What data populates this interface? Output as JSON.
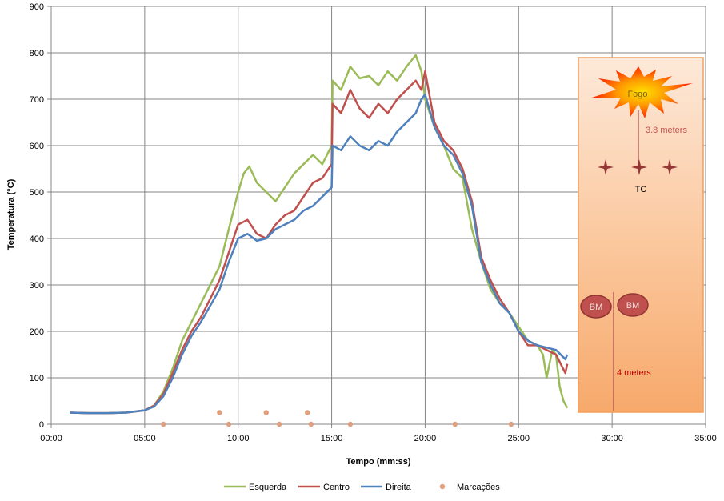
{
  "chart_data": {
    "type": "line",
    "title": "",
    "xlabel": "Tempo (mm:ss)",
    "ylabel": "Temperatura  (°C)",
    "xlim": [
      0,
      35
    ],
    "ylim": [
      0,
      900
    ],
    "x_ticks": [
      "00:00",
      "05:00",
      "10:00",
      "15:00",
      "20:00",
      "25:00",
      "30:00",
      "35:00"
    ],
    "y_ticks": [
      "0",
      "100",
      "200",
      "300",
      "400",
      "500",
      "600",
      "700",
      "800",
      "900"
    ],
    "grid": true,
    "legend_position": "bottom",
    "x_unit": "minutes",
    "series": [
      {
        "name": "Esquerda",
        "color": "#9BBB59",
        "points": [
          [
            1,
            25
          ],
          [
            2,
            24
          ],
          [
            3,
            24
          ],
          [
            4,
            25
          ],
          [
            5,
            30
          ],
          [
            5.5,
            40
          ],
          [
            6,
            70
          ],
          [
            6.5,
            120
          ],
          [
            7,
            180
          ],
          [
            7.5,
            220
          ],
          [
            8,
            260
          ],
          [
            8.5,
            300
          ],
          [
            9,
            340
          ],
          [
            9.5,
            420
          ],
          [
            10,
            500
          ],
          [
            10.3,
            540
          ],
          [
            10.6,
            555
          ],
          [
            11,
            520
          ],
          [
            11.5,
            500
          ],
          [
            12,
            480
          ],
          [
            12.5,
            510
          ],
          [
            13,
            540
          ],
          [
            13.5,
            560
          ],
          [
            14,
            580
          ],
          [
            14.5,
            560
          ],
          [
            15,
            600
          ],
          [
            15.05,
            740
          ],
          [
            15.5,
            720
          ],
          [
            16,
            770
          ],
          [
            16.5,
            745
          ],
          [
            17,
            750
          ],
          [
            17.5,
            730
          ],
          [
            18,
            760
          ],
          [
            18.5,
            740
          ],
          [
            19,
            770
          ],
          [
            19.5,
            795
          ],
          [
            19.8,
            760
          ],
          [
            20,
            700
          ],
          [
            20.5,
            640
          ],
          [
            21,
            600
          ],
          [
            21.5,
            550
          ],
          [
            22,
            530
          ],
          [
            22.5,
            420
          ],
          [
            23,
            350
          ],
          [
            23.5,
            290
          ],
          [
            24,
            260
          ],
          [
            24.5,
            240
          ],
          [
            25,
            210
          ],
          [
            25.5,
            180
          ],
          [
            26,
            170
          ],
          [
            26.3,
            150
          ],
          [
            26.5,
            100
          ],
          [
            26.8,
            160
          ],
          [
            27,
            150
          ],
          [
            27.2,
            80
          ],
          [
            27.4,
            50
          ],
          [
            27.6,
            35
          ]
        ]
      },
      {
        "name": "Centro",
        "color": "#C0504D",
        "points": [
          [
            1,
            25
          ],
          [
            2,
            24
          ],
          [
            3,
            24
          ],
          [
            4,
            25
          ],
          [
            5,
            30
          ],
          [
            5.5,
            40
          ],
          [
            6,
            65
          ],
          [
            6.5,
            110
          ],
          [
            7,
            160
          ],
          [
            7.5,
            200
          ],
          [
            8,
            230
          ],
          [
            8.5,
            270
          ],
          [
            9,
            310
          ],
          [
            9.5,
            370
          ],
          [
            10,
            430
          ],
          [
            10.5,
            440
          ],
          [
            11,
            410
          ],
          [
            11.5,
            400
          ],
          [
            12,
            430
          ],
          [
            12.5,
            450
          ],
          [
            13,
            460
          ],
          [
            13.5,
            490
          ],
          [
            14,
            520
          ],
          [
            14.5,
            530
          ],
          [
            15,
            560
          ],
          [
            15.05,
            690
          ],
          [
            15.5,
            670
          ],
          [
            16,
            720
          ],
          [
            16.5,
            680
          ],
          [
            17,
            660
          ],
          [
            17.5,
            690
          ],
          [
            18,
            670
          ],
          [
            18.5,
            700
          ],
          [
            19,
            720
          ],
          [
            19.5,
            740
          ],
          [
            19.8,
            720
          ],
          [
            20,
            760
          ],
          [
            20.5,
            650
          ],
          [
            21,
            610
          ],
          [
            21.5,
            590
          ],
          [
            22,
            550
          ],
          [
            22.5,
            480
          ],
          [
            23,
            360
          ],
          [
            23.5,
            310
          ],
          [
            24,
            270
          ],
          [
            24.5,
            240
          ],
          [
            25,
            200
          ],
          [
            25.5,
            170
          ],
          [
            26,
            170
          ],
          [
            26.5,
            160
          ],
          [
            27,
            150
          ],
          [
            27.5,
            110
          ],
          [
            27.6,
            130
          ]
        ]
      },
      {
        "name": "Direita",
        "color": "#4F81BD",
        "points": [
          [
            1,
            25
          ],
          [
            2,
            24
          ],
          [
            3,
            24
          ],
          [
            4,
            25
          ],
          [
            5,
            30
          ],
          [
            5.5,
            38
          ],
          [
            6,
            60
          ],
          [
            6.5,
            100
          ],
          [
            7,
            150
          ],
          [
            7.5,
            190
          ],
          [
            8,
            220
          ],
          [
            8.5,
            255
          ],
          [
            9,
            290
          ],
          [
            9.5,
            350
          ],
          [
            10,
            400
          ],
          [
            10.5,
            410
          ],
          [
            11,
            395
          ],
          [
            11.5,
            400
          ],
          [
            12,
            420
          ],
          [
            12.5,
            430
          ],
          [
            13,
            440
          ],
          [
            13.5,
            460
          ],
          [
            14,
            470
          ],
          [
            14.5,
            490
          ],
          [
            15,
            510
          ],
          [
            15.05,
            600
          ],
          [
            15.5,
            590
          ],
          [
            16,
            620
          ],
          [
            16.5,
            600
          ],
          [
            17,
            590
          ],
          [
            17.5,
            610
          ],
          [
            18,
            600
          ],
          [
            18.5,
            630
          ],
          [
            19,
            650
          ],
          [
            19.5,
            670
          ],
          [
            19.8,
            700
          ],
          [
            20,
            710
          ],
          [
            20.5,
            640
          ],
          [
            21,
            600
          ],
          [
            21.5,
            580
          ],
          [
            22,
            540
          ],
          [
            22.5,
            470
          ],
          [
            23,
            350
          ],
          [
            23.5,
            300
          ],
          [
            24,
            260
          ],
          [
            24.5,
            240
          ],
          [
            25,
            200
          ],
          [
            25.5,
            180
          ],
          [
            26,
            170
          ],
          [
            26.5,
            165
          ],
          [
            27,
            160
          ],
          [
            27.5,
            140
          ],
          [
            27.6,
            150
          ]
        ]
      },
      {
        "name": "Marcações",
        "color": "#E0A07D",
        "points": [
          [
            6,
            0
          ],
          [
            9,
            25
          ],
          [
            9.5,
            0
          ],
          [
            11.5,
            25
          ],
          [
            12.2,
            0
          ],
          [
            13.7,
            25
          ],
          [
            13.9,
            0
          ],
          [
            16,
            0
          ],
          [
            21.6,
            0
          ],
          [
            24.6,
            0
          ]
        ]
      }
    ],
    "inset": {
      "fire_label": "Fogo",
      "tc_label": "TC",
      "distance_top": "3.8 meters",
      "bm_labels": [
        "BM",
        "BM"
      ],
      "distance_bottom": "4 meters"
    }
  }
}
